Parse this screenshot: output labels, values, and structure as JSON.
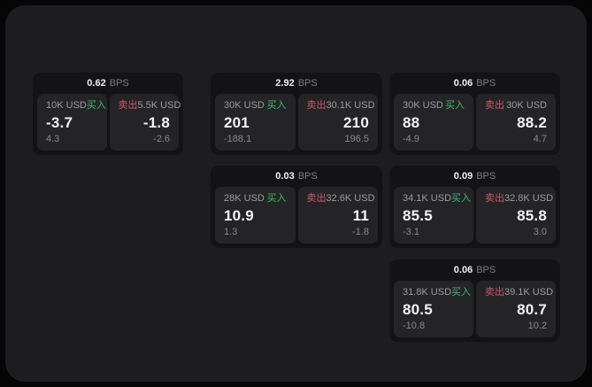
{
  "labels": {
    "bps_suffix": "BPS",
    "buy": "买入",
    "sell": "卖出"
  },
  "colors": {
    "buy": "#3abc68",
    "sell": "#cd5568",
    "outer": "#050505",
    "panel": "#1d1d1f",
    "card": "#131315",
    "tile": "#242427"
  },
  "cards": [
    {
      "bps": "0.62",
      "col": 1,
      "row": 1,
      "buy": {
        "amount": "10K USD",
        "price": "-3.7",
        "sub": "4.3"
      },
      "sell": {
        "amount": "5.5K USD",
        "price": "-1.8",
        "sub": "-2.6"
      }
    },
    {
      "bps": "2.92",
      "col": 2,
      "row": 1,
      "buy": {
        "amount": "30K USD",
        "price": "201",
        "sub": "-188.1"
      },
      "sell": {
        "amount": "30.1K USD",
        "price": "210",
        "sub": "196.5"
      }
    },
    {
      "bps": "0.06",
      "col": 3,
      "row": 1,
      "buy": {
        "amount": "30K USD",
        "price": "88",
        "sub": "-4.9"
      },
      "sell": {
        "amount": "30K USD",
        "price": "88.2",
        "sub": "4.7"
      }
    },
    {
      "bps": "0.03",
      "col": 2,
      "row": 2,
      "buy": {
        "amount": "28K USD",
        "price": "10.9",
        "sub": "1.3"
      },
      "sell": {
        "amount": "32.6K USD",
        "price": "11",
        "sub": "-1.8"
      }
    },
    {
      "bps": "0.09",
      "col": 3,
      "row": 2,
      "buy": {
        "amount": "34.1K USD",
        "price": "85.5",
        "sub": "-3.1"
      },
      "sell": {
        "amount": "32.8K USD",
        "price": "85.8",
        "sub": "3.0"
      }
    },
    {
      "bps": "0.06",
      "col": 3,
      "row": 3,
      "buy": {
        "amount": "31.8K USD",
        "price": "80.5",
        "sub": "-10.8"
      },
      "sell": {
        "amount": "39.1K USD",
        "price": "80.7",
        "sub": "10.2"
      }
    }
  ]
}
